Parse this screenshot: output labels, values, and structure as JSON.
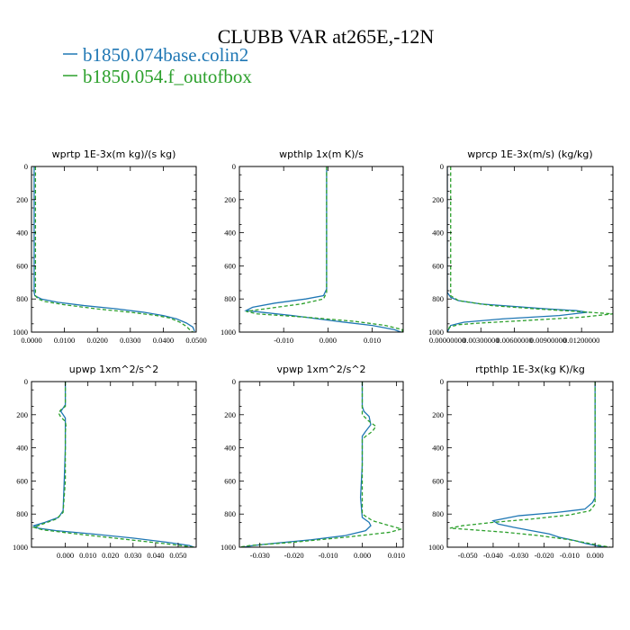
{
  "figure": {
    "title": "CLUBB VAR at265E,-12N",
    "legend": [
      {
        "name": "b1850.074base.colin2",
        "color": "#1f77b4",
        "dash": "solid"
      },
      {
        "name": "b1850.054.f_outofbox",
        "color": "#2ca02c",
        "dash": "dashed"
      }
    ]
  },
  "chart_data": [
    {
      "type": "line",
      "title": "wprtp  1E-3x(m kg)/(s kg)",
      "xlim": [
        0.0,
        0.05
      ],
      "ylim": [
        0,
        1000
      ],
      "y_inverted": true,
      "xticks": [
        0.0,
        0.01,
        0.02,
        0.03,
        0.04,
        0.05
      ],
      "xtick_labels": [
        "0.0000",
        "0.0100",
        "0.0200",
        "0.0300",
        "0.0400",
        "0.0500"
      ],
      "yticks": [
        0,
        200,
        400,
        600,
        800,
        1000
      ],
      "series": [
        {
          "values": [
            [
              0.0008,
              0
            ],
            [
              0.0008,
              200
            ],
            [
              0.0008,
              400
            ],
            [
              0.0008,
              600
            ],
            [
              0.0008,
              760
            ],
            [
              0.001,
              780
            ],
            [
              0.003,
              800
            ],
            [
              0.008,
              820
            ],
            [
              0.016,
              840
            ],
            [
              0.026,
              860
            ],
            [
              0.034,
              880
            ],
            [
              0.04,
              900
            ],
            [
              0.044,
              920
            ],
            [
              0.047,
              945
            ],
            [
              0.049,
              970
            ],
            [
              0.0495,
              995
            ]
          ]
        },
        {
          "values": [
            [
              0.0012,
              0
            ],
            [
              0.0012,
              200
            ],
            [
              0.0012,
              400
            ],
            [
              0.0012,
              600
            ],
            [
              0.0012,
              780
            ],
            [
              0.002,
              800
            ],
            [
              0.004,
              815
            ],
            [
              0.01,
              835
            ],
            [
              0.02,
              860
            ],
            [
              0.03,
              880
            ],
            [
              0.038,
              900
            ],
            [
              0.042,
              915
            ],
            [
              0.045,
              940
            ],
            [
              0.047,
              965
            ],
            [
              0.048,
              985
            ],
            [
              0.049,
              1000
            ]
          ]
        }
      ]
    },
    {
      "type": "line",
      "title": "wpthlp  1x(m K)/s",
      "xlim": [
        -0.02,
        0.017
      ],
      "ylim": [
        0,
        1000
      ],
      "y_inverted": true,
      "xticks": [
        -0.01,
        0.0,
        0.01
      ],
      "xtick_labels": [
        "-0.010",
        "0.000",
        "0.010"
      ],
      "yticks": [
        0,
        200,
        400,
        600,
        800,
        1000
      ],
      "series": [
        {
          "values": [
            [
              -0.0003,
              0
            ],
            [
              -0.0003,
              200
            ],
            [
              -0.0003,
              400
            ],
            [
              -0.0003,
              600
            ],
            [
              -0.0003,
              740
            ],
            [
              -0.001,
              780
            ],
            [
              -0.005,
              800
            ],
            [
              -0.012,
              825
            ],
            [
              -0.017,
              850
            ],
            [
              -0.0185,
              870
            ],
            [
              -0.015,
              880
            ],
            [
              -0.008,
              900
            ],
            [
              0.002,
              935
            ],
            [
              0.01,
              960
            ],
            [
              0.015,
              985
            ],
            [
              0.0165,
              1000
            ]
          ]
        },
        {
          "values": [
            [
              -0.0003,
              0
            ],
            [
              -0.0003,
              200
            ],
            [
              -0.0003,
              400
            ],
            [
              -0.0003,
              600
            ],
            [
              -0.0003,
              760
            ],
            [
              -0.001,
              800
            ],
            [
              -0.006,
              830
            ],
            [
              -0.013,
              855
            ],
            [
              -0.0185,
              875
            ],
            [
              -0.016,
              890
            ],
            [
              -0.005,
              910
            ],
            [
              0.006,
              935
            ],
            [
              0.013,
              960
            ],
            [
              0.0168,
              985
            ],
            [
              0.0168,
              1000
            ]
          ]
        }
      ]
    },
    {
      "type": "line",
      "title": "wprcp  1E-3x(m/s) (kg/kg)",
      "xlim": [
        0.0,
        0.0148
      ],
      "ylim": [
        0,
        1000
      ],
      "y_inverted": true,
      "xticks": [
        0.0,
        0.003,
        0.006,
        0.009,
        0.012
      ],
      "xtick_labels": [
        "0.00000000",
        "0.00300000",
        "0.00600000",
        "0.00900000",
        "0.01200000"
      ],
      "yticks": [
        0,
        200,
        400,
        600,
        800,
        1000
      ],
      "series": [
        {
          "values": [
            [
              0.0,
              0
            ],
            [
              0.0,
              200
            ],
            [
              0.0,
              400
            ],
            [
              0.0,
              600
            ],
            [
              0.0,
              760
            ],
            [
              0.0003,
              790
            ],
            [
              0.001,
              810
            ],
            [
              0.003,
              830
            ],
            [
              0.006,
              845
            ],
            [
              0.009,
              860
            ],
            [
              0.0115,
              870
            ],
            [
              0.0125,
              880
            ],
            [
              0.01,
              900
            ],
            [
              0.005,
              920
            ],
            [
              0.0015,
              940
            ],
            [
              0.0003,
              960
            ],
            [
              0.0,
              1000
            ]
          ]
        },
        {
          "values": [
            [
              0.0003,
              0
            ],
            [
              0.0003,
              200
            ],
            [
              0.0003,
              400
            ],
            [
              0.0003,
              600
            ],
            [
              0.0003,
              780
            ],
            [
              0.001,
              810
            ],
            [
              0.004,
              840
            ],
            [
              0.008,
              860
            ],
            [
              0.0115,
              875
            ],
            [
              0.0148,
              890
            ],
            [
              0.012,
              910
            ],
            [
              0.007,
              930
            ],
            [
              0.003,
              945
            ],
            [
              0.001,
              955
            ],
            [
              0.0002,
              970
            ],
            [
              0.0,
              1000
            ]
          ]
        }
      ]
    },
    {
      "type": "line",
      "title": "upwp  1xm^2/s^2",
      "xlim": [
        -0.015,
        0.058
      ],
      "ylim": [
        0,
        1000
      ],
      "y_inverted": true,
      "xticks": [
        0.0,
        0.01,
        0.02,
        0.03,
        0.04,
        0.05
      ],
      "xtick_labels": [
        "0.000",
        "0.010",
        "0.020",
        "0.030",
        "0.040",
        "0.050"
      ],
      "yticks": [
        0,
        200,
        400,
        600,
        800,
        1000
      ],
      "series": [
        {
          "values": [
            [
              0.0,
              0
            ],
            [
              0.0,
              140
            ],
            [
              -0.001,
              160
            ],
            [
              -0.002,
              180
            ],
            [
              -0.001,
              200
            ],
            [
              0.0,
              220
            ],
            [
              0.0,
              400
            ],
            [
              -0.0005,
              600
            ],
            [
              -0.001,
              780
            ],
            [
              -0.003,
              820
            ],
            [
              -0.009,
              850
            ],
            [
              -0.014,
              870
            ],
            [
              -0.012,
              885
            ],
            [
              -0.004,
              900
            ],
            [
              0.012,
              920
            ],
            [
              0.03,
              945
            ],
            [
              0.045,
              970
            ],
            [
              0.055,
              990
            ],
            [
              0.057,
              1000
            ]
          ]
        },
        {
          "values": [
            [
              0.0,
              0
            ],
            [
              0.0,
              150
            ],
            [
              -0.002,
              170
            ],
            [
              -0.003,
              190
            ],
            [
              -0.002,
              215
            ],
            [
              0.0,
              240
            ],
            [
              0.0003,
              270
            ],
            [
              0.0,
              300
            ],
            [
              0.0,
              600
            ],
            [
              -0.001,
              790
            ],
            [
              -0.004,
              830
            ],
            [
              -0.01,
              860
            ],
            [
              -0.014,
              880
            ],
            [
              -0.01,
              895
            ],
            [
              0.005,
              920
            ],
            [
              0.025,
              950
            ],
            [
              0.045,
              980
            ],
            [
              0.057,
              1000
            ]
          ]
        }
      ]
    },
    {
      "type": "line",
      "title": "vpwp  1xm^2/s^2",
      "xlim": [
        -0.036,
        0.012
      ],
      "ylim": [
        0,
        1000
      ],
      "y_inverted": true,
      "xticks": [
        -0.03,
        -0.02,
        -0.01,
        0.0,
        0.01
      ],
      "xtick_labels": [
        "-0.030",
        "-0.020",
        "-0.010",
        "0.000",
        "0.010"
      ],
      "yticks": [
        0,
        200,
        400,
        600,
        800,
        1000
      ],
      "series": [
        {
          "values": [
            [
              0.0,
              0
            ],
            [
              0.0,
              150
            ],
            [
              0.0005,
              180
            ],
            [
              0.002,
              210
            ],
            [
              0.0025,
              260
            ],
            [
              0.001,
              300
            ],
            [
              0.0,
              330
            ],
            [
              0.0,
              500
            ],
            [
              -0.0005,
              700
            ],
            [
              0.0,
              820
            ],
            [
              0.002,
              850
            ],
            [
              0.0025,
              870
            ],
            [
              0.001,
              900
            ],
            [
              -0.005,
              930
            ],
            [
              -0.015,
              955
            ],
            [
              -0.025,
              975
            ],
            [
              -0.032,
              990
            ],
            [
              -0.035,
              1000
            ]
          ]
        },
        {
          "values": [
            [
              0.0,
              0
            ],
            [
              0.0,
              200
            ],
            [
              0.002,
              240
            ],
            [
              0.004,
              270
            ],
            [
              0.003,
              300
            ],
            [
              0.001,
              330
            ],
            [
              0.0,
              350
            ],
            [
              0.0,
              700
            ],
            [
              0.0,
              800
            ],
            [
              0.003,
              840
            ],
            [
              0.008,
              870
            ],
            [
              0.0115,
              890
            ],
            [
              0.008,
              910
            ],
            [
              -0.005,
              940
            ],
            [
              -0.02,
              970
            ],
            [
              -0.033,
              990
            ],
            [
              -0.036,
              1000
            ]
          ]
        }
      ]
    },
    {
      "type": "line",
      "title": "rtpthlp  1E-3x(kg K)/kg",
      "xlim": [
        -0.058,
        0.007
      ],
      "ylim": [
        0,
        1000
      ],
      "y_inverted": true,
      "xticks": [
        -0.05,
        -0.04,
        -0.03,
        -0.02,
        -0.01,
        0.0
      ],
      "xtick_labels": [
        "-0.050",
        "-0.040",
        "-0.030",
        "-0.020",
        "-0.010",
        "0.000"
      ],
      "yticks": [
        0,
        200,
        400,
        600,
        800,
        1000
      ],
      "series": [
        {
          "values": [
            [
              0.0,
              0
            ],
            [
              0.0,
              500
            ],
            [
              0.0,
              700
            ],
            [
              -0.001,
              730
            ],
            [
              -0.004,
              770
            ],
            [
              -0.015,
              790
            ],
            [
              -0.03,
              810
            ],
            [
              -0.04,
              840
            ],
            [
              -0.038,
              860
            ],
            [
              -0.032,
              880
            ],
            [
              -0.025,
              900
            ],
            [
              -0.018,
              920
            ],
            [
              -0.014,
              940
            ],
            [
              -0.008,
              960
            ],
            [
              -0.003,
              980
            ],
            [
              0.002,
              995
            ],
            [
              0.005,
              1000
            ]
          ]
        },
        {
          "values": [
            [
              0.0,
              0
            ],
            [
              0.0,
              500
            ],
            [
              0.0,
              740
            ],
            [
              -0.002,
              780
            ],
            [
              -0.01,
              805
            ],
            [
              -0.025,
              830
            ],
            [
              -0.04,
              850
            ],
            [
              -0.052,
              870
            ],
            [
              -0.057,
              885
            ],
            [
              -0.048,
              895
            ],
            [
              -0.035,
              910
            ],
            [
              -0.022,
              930
            ],
            [
              -0.01,
              955
            ],
            [
              -0.003,
              975
            ],
            [
              0.002,
              990
            ],
            [
              0.006,
              1000
            ]
          ]
        }
      ]
    }
  ]
}
